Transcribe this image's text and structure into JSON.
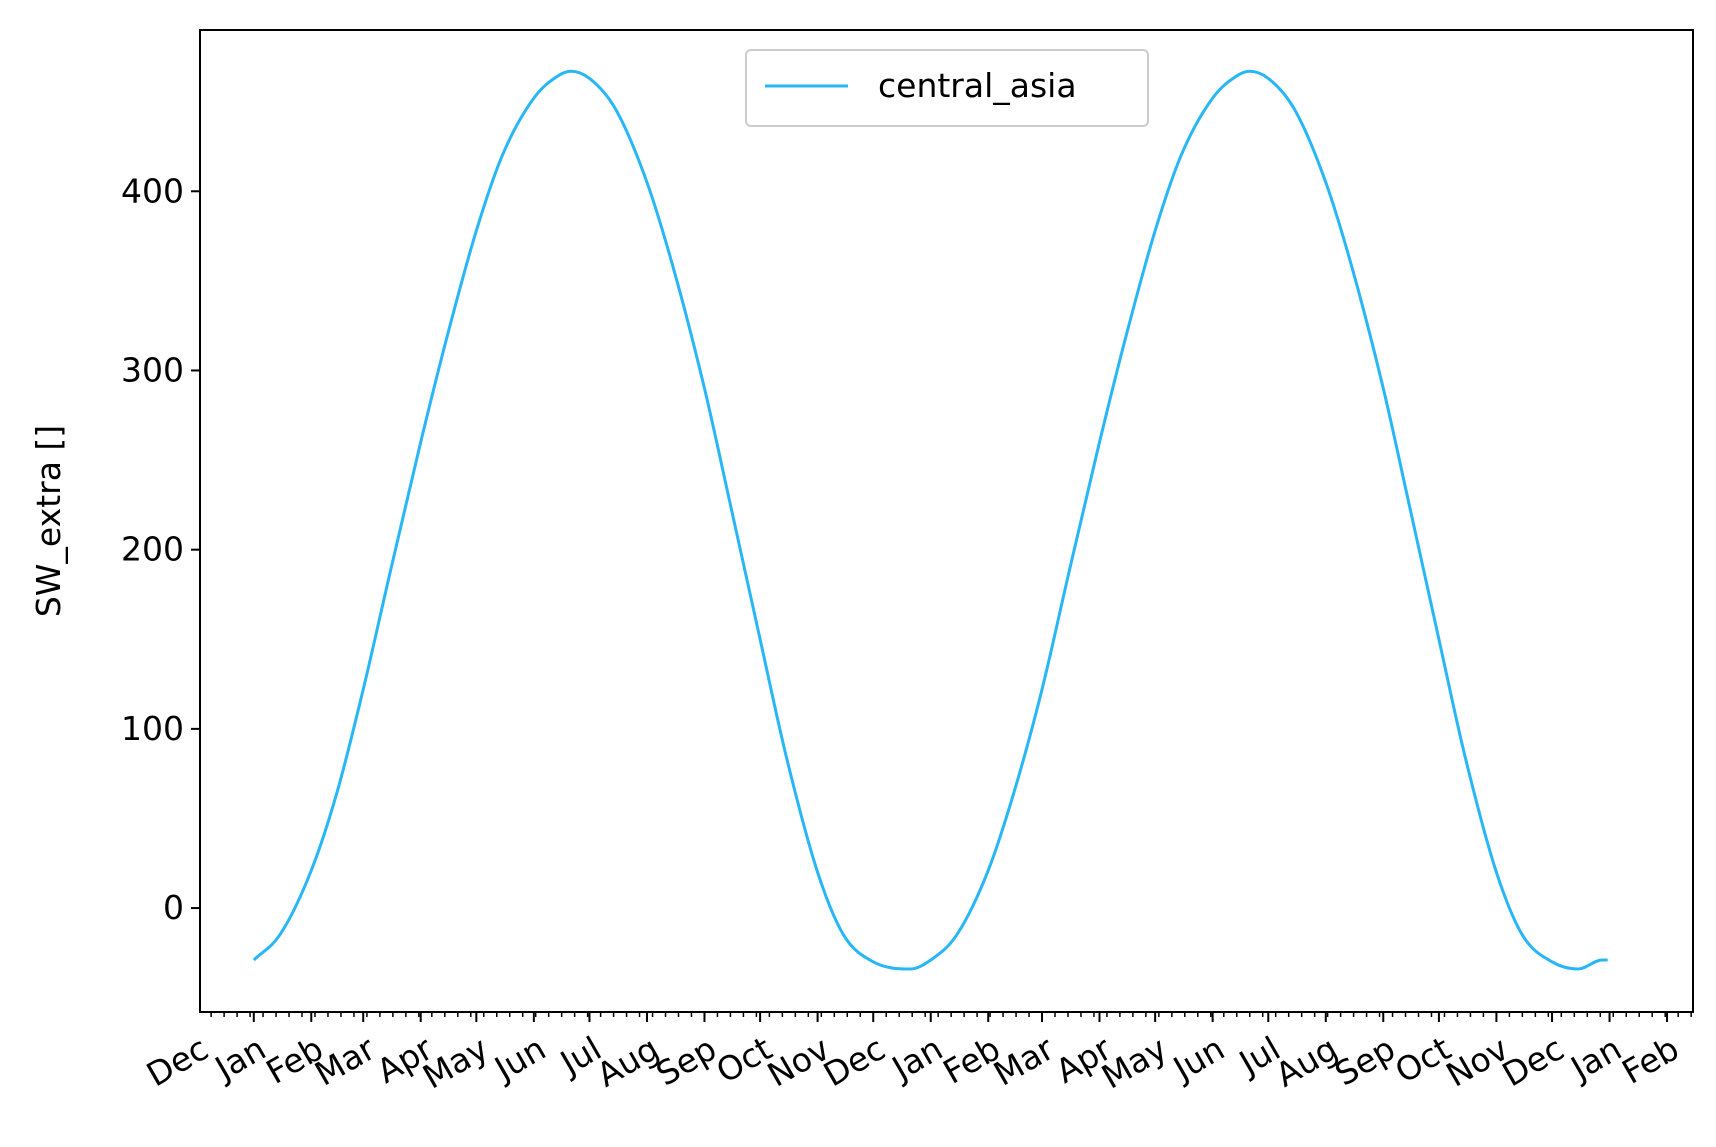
{
  "chart_data": {
    "type": "line",
    "title": "",
    "xlabel": "",
    "ylabel": "SW_extra []",
    "ylim": [
      -58,
      490
    ],
    "yticks": [
      0,
      100,
      200,
      300,
      400
    ],
    "xlim": [
      "2018-12-03",
      "2021-02-15"
    ],
    "xticks": [
      {
        "date": "2018-12-01",
        "label": "Dec"
      },
      {
        "date": "2019-01-01",
        "label": "Jan"
      },
      {
        "date": "2019-02-01",
        "label": "Feb"
      },
      {
        "date": "2019-03-01",
        "label": "Mar"
      },
      {
        "date": "2019-04-01",
        "label": "Apr"
      },
      {
        "date": "2019-05-01",
        "label": "May"
      },
      {
        "date": "2019-06-01",
        "label": "Jun"
      },
      {
        "date": "2019-07-01",
        "label": "Jul"
      },
      {
        "date": "2019-08-01",
        "label": "Aug"
      },
      {
        "date": "2019-09-01",
        "label": "Sep"
      },
      {
        "date": "2019-10-01",
        "label": "Oct"
      },
      {
        "date": "2019-11-01",
        "label": "Nov"
      },
      {
        "date": "2019-12-01",
        "label": "Dec"
      },
      {
        "date": "2020-01-01",
        "label": "Jan"
      },
      {
        "date": "2020-02-01",
        "label": "Feb"
      },
      {
        "date": "2020-03-01",
        "label": "Mar"
      },
      {
        "date": "2020-04-01",
        "label": "Apr"
      },
      {
        "date": "2020-05-01",
        "label": "May"
      },
      {
        "date": "2020-06-01",
        "label": "Jun"
      },
      {
        "date": "2020-07-01",
        "label": "Jul"
      },
      {
        "date": "2020-08-01",
        "label": "Aug"
      },
      {
        "date": "2020-09-01",
        "label": "Sep"
      },
      {
        "date": "2020-10-01",
        "label": "Oct"
      },
      {
        "date": "2020-11-01",
        "label": "Nov"
      },
      {
        "date": "2020-12-01",
        "label": "Dec"
      },
      {
        "date": "2021-01-01",
        "label": "Jan"
      },
      {
        "date": "2021-02-01",
        "label": "Feb"
      }
    ],
    "grid": false,
    "legend": {
      "placement": "upper center"
    },
    "series": [
      {
        "name": "central_asia",
        "color": "#29b6f6",
        "points": [
          [
            "2019-01-01",
            -29
          ],
          [
            "2019-01-15",
            -15
          ],
          [
            "2019-02-01",
            21
          ],
          [
            "2019-02-15",
            65
          ],
          [
            "2019-03-01",
            122
          ],
          [
            "2019-03-15",
            185
          ],
          [
            "2019-04-01",
            260
          ],
          [
            "2019-04-15",
            318
          ],
          [
            "2019-05-01",
            378
          ],
          [
            "2019-05-15",
            420
          ],
          [
            "2019-06-01",
            452
          ],
          [
            "2019-06-15",
            465
          ],
          [
            "2019-06-21",
            467
          ],
          [
            "2019-07-01",
            463
          ],
          [
            "2019-07-15",
            446
          ],
          [
            "2019-08-01",
            405
          ],
          [
            "2019-08-15",
            358
          ],
          [
            "2019-09-01",
            290
          ],
          [
            "2019-09-15",
            225
          ],
          [
            "2019-10-01",
            150
          ],
          [
            "2019-10-15",
            85
          ],
          [
            "2019-11-01",
            20
          ],
          [
            "2019-11-15",
            -15
          ],
          [
            "2019-12-01",
            -30
          ],
          [
            "2019-12-21",
            -34
          ],
          [
            "2020-01-01",
            -29
          ],
          [
            "2020-01-15",
            -15
          ],
          [
            "2020-02-01",
            21
          ],
          [
            "2020-02-15",
            65
          ],
          [
            "2020-03-01",
            122
          ],
          [
            "2020-03-15",
            185
          ],
          [
            "2020-04-01",
            260
          ],
          [
            "2020-04-15",
            318
          ],
          [
            "2020-05-01",
            378
          ],
          [
            "2020-05-15",
            420
          ],
          [
            "2020-06-01",
            452
          ],
          [
            "2020-06-15",
            465
          ],
          [
            "2020-06-21",
            467
          ],
          [
            "2020-07-01",
            463
          ],
          [
            "2020-07-15",
            446
          ],
          [
            "2020-08-01",
            405
          ],
          [
            "2020-08-15",
            358
          ],
          [
            "2020-09-01",
            290
          ],
          [
            "2020-09-15",
            225
          ],
          [
            "2020-10-01",
            150
          ],
          [
            "2020-10-15",
            85
          ],
          [
            "2020-11-01",
            20
          ],
          [
            "2020-11-15",
            -15
          ],
          [
            "2020-12-01",
            -30
          ],
          [
            "2020-12-15",
            -34
          ],
          [
            "2020-12-28",
            -29
          ],
          [
            "2020-12-31",
            -29
          ]
        ]
      }
    ]
  }
}
